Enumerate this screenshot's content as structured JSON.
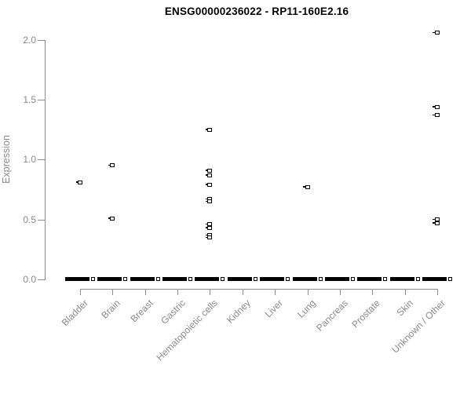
{
  "chart_data": {
    "type": "scatter",
    "title": "ENSG00000236022 - RP11-160E2.16",
    "ylabel": "Expression",
    "xlabel": "",
    "ylim": [
      0.0,
      2.0
    ],
    "ytick_labels": [
      "0.0",
      "0.5",
      "1.0",
      "1.5",
      "2.0"
    ],
    "ytick_values": [
      0,
      0.5,
      1.0,
      1.5,
      2.0
    ],
    "grid": false,
    "legend": "none",
    "marker": "open-square-with-left-dash",
    "colors": {
      "point": "#000000",
      "axis": "#8e8e8e",
      "tick_text": "#8a8a8a",
      "title_text": "#000000",
      "background": "#ffffff"
    },
    "categories": [
      "Bladder",
      "Brain",
      "Breast",
      "Gastric",
      "Hematopoietic cells",
      "Kidney",
      "Liver",
      "Lung",
      "Pancreas",
      "Prostate",
      "Skin",
      "Unknown / Other"
    ],
    "series": [
      {
        "category": "Bladder",
        "nonzero_points": [
          0.81
        ],
        "zero_cluster": true
      },
      {
        "category": "Brain",
        "nonzero_points": [
          0.95,
          0.51
        ],
        "zero_cluster": true
      },
      {
        "category": "Breast",
        "nonzero_points": [],
        "zero_cluster": true
      },
      {
        "category": "Gastric",
        "nonzero_points": [],
        "zero_cluster": true
      },
      {
        "category": "Hematopoietic cells",
        "nonzero_points": [
          1.25,
          0.91,
          0.87,
          0.79,
          0.67,
          0.65,
          0.46,
          0.43,
          0.37,
          0.35
        ],
        "zero_cluster": true
      },
      {
        "category": "Kidney",
        "nonzero_points": [],
        "zero_cluster": true
      },
      {
        "category": "Liver",
        "nonzero_points": [],
        "zero_cluster": true
      },
      {
        "category": "Lung",
        "nonzero_points": [
          0.77
        ],
        "zero_cluster": true
      },
      {
        "category": "Pancreas",
        "nonzero_points": [],
        "zero_cluster": true
      },
      {
        "category": "Prostate",
        "nonzero_points": [],
        "zero_cluster": true
      },
      {
        "category": "Skin",
        "nonzero_points": [],
        "zero_cluster": true
      },
      {
        "category": "Unknown / Other",
        "nonzero_points": [
          2.06,
          1.44,
          1.37,
          0.5,
          0.47
        ],
        "zero_cluster": true
      }
    ]
  }
}
